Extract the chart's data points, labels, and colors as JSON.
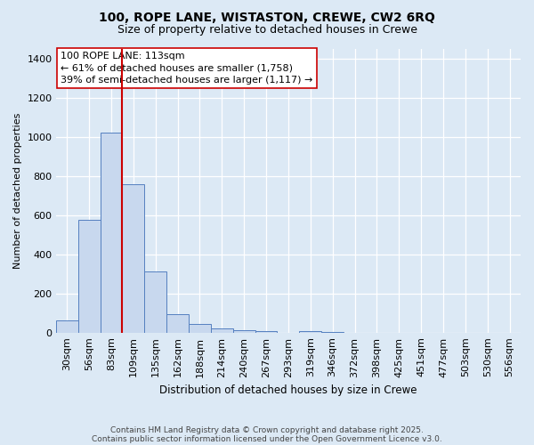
{
  "title1": "100, ROPE LANE, WISTASTON, CREWE, CW2 6RQ",
  "title2": "Size of property relative to detached houses in Crewe",
  "xlabel": "Distribution of detached houses by size in Crewe",
  "ylabel": "Number of detached properties",
  "categories": [
    "30sqm",
    "56sqm",
    "83sqm",
    "109sqm",
    "135sqm",
    "162sqm",
    "188sqm",
    "214sqm",
    "240sqm",
    "267sqm",
    "293sqm",
    "319sqm",
    "346sqm",
    "372sqm",
    "398sqm",
    "425sqm",
    "451sqm",
    "477sqm",
    "503sqm",
    "530sqm",
    "556sqm"
  ],
  "values": [
    65,
    580,
    1025,
    760,
    315,
    95,
    45,
    25,
    15,
    10,
    0,
    10,
    5,
    0,
    0,
    0,
    0,
    0,
    0,
    0,
    0
  ],
  "bar_color": "#c8d8ee",
  "bar_edge_color": "#5580c0",
  "vline_color": "#cc0000",
  "vline_index": 3,
  "annotation_line1": "100 ROPE LANE: 113sqm",
  "annotation_line2": "← 61% of detached houses are smaller (1,758)",
  "annotation_line3": "39% of semi-detached houses are larger (1,117) →",
  "annotation_box_facecolor": "#ffffff",
  "annotation_box_edgecolor": "#cc0000",
  "ylim": [
    0,
    1450
  ],
  "yticks": [
    0,
    200,
    400,
    600,
    800,
    1000,
    1200,
    1400
  ],
  "footer1": "Contains HM Land Registry data © Crown copyright and database right 2025.",
  "footer2": "Contains public sector information licensed under the Open Government Licence v3.0.",
  "fig_bg_color": "#dce9f5",
  "plot_bg_color": "#dce9f5",
  "grid_color": "#ffffff",
  "title1_fontsize": 10,
  "title2_fontsize": 9,
  "ylabel_fontsize": 8,
  "xlabel_fontsize": 8.5,
  "tick_fontsize": 8,
  "footer_fontsize": 6.5,
  "ann_fontsize": 8
}
